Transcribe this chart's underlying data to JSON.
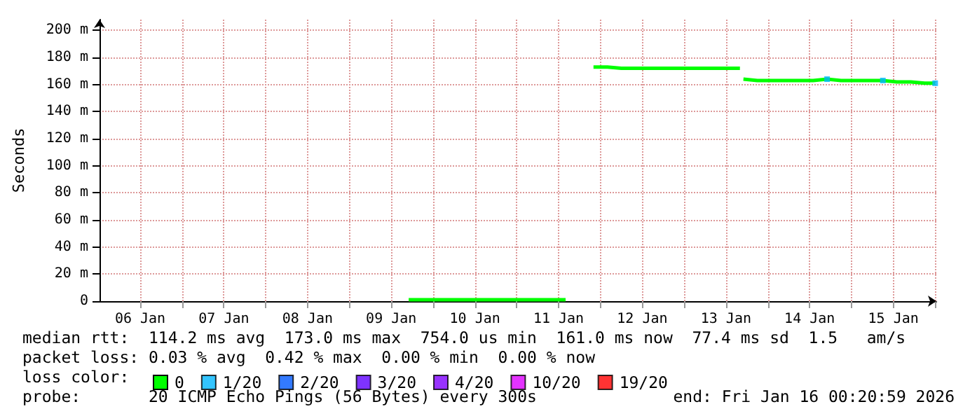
{
  "chart_data": {
    "type": "line",
    "ylabel": "Seconds",
    "x": [
      "2026-01-09T17:00",
      "2026-01-09T21:00",
      "2026-01-10T01:00",
      "2026-01-10T05:00",
      "2026-01-10T09:00",
      "2026-01-10T13:00",
      "2026-01-10T17:00",
      "2026-01-10T21:00",
      "2026-01-11T01:00",
      "2026-01-11T05:00",
      "2026-01-11T09:00",
      "2026-01-11T13:00",
      "2026-01-11T14:00",
      "2026-01-11T18:00",
      "2026-01-11T22:00",
      "2026-01-12T02:00",
      "2026-01-12T06:00",
      "2026-01-12T10:00",
      "2026-01-12T14:00",
      "2026-01-12T18:00",
      "2026-01-12T22:00",
      "2026-01-13T02:00",
      "2026-01-13T06:00",
      "2026-01-13T10:00",
      "2026-01-13T14:00",
      "2026-01-13T16:00",
      "2026-01-13T16:20",
      "2026-01-13T17:00",
      "2026-01-13T21:00",
      "2026-01-14T01:00",
      "2026-01-14T05:00",
      "2026-01-14T09:00",
      "2026-01-14T13:00",
      "2026-01-14T17:00",
      "2026-01-14T21:00",
      "2026-01-15T01:00",
      "2026-01-15T05:00",
      "2026-01-15T09:00",
      "2026-01-15T13:00",
      "2026-01-15T17:00",
      "2026-01-15T21:00",
      "2026-01-16T00:00"
    ],
    "series": [
      {
        "name": "0",
        "color": "#00ff00",
        "values": [
          1,
          1,
          1,
          1,
          1,
          1,
          1,
          1,
          1,
          1,
          1,
          1,
          1,
          null,
          173,
          173,
          172,
          172,
          172,
          172,
          172,
          172,
          172,
          172,
          172,
          172,
          null,
          164,
          163,
          163,
          163,
          163,
          163,
          164,
          163,
          163,
          163,
          163,
          162,
          162,
          161,
          161
        ]
      },
      {
        "name": "1/20",
        "type": "scatter",
        "marker": "square",
        "color": "#00b7ff",
        "values": [
          null,
          null,
          null,
          null,
          null,
          null,
          null,
          null,
          null,
          null,
          null,
          null,
          null,
          null,
          null,
          null,
          null,
          null,
          null,
          null,
          null,
          null,
          null,
          null,
          null,
          null,
          null,
          null,
          null,
          null,
          null,
          null,
          null,
          164,
          null,
          null,
          null,
          163,
          null,
          null,
          null,
          161
        ]
      },
      {
        "name": "2/20",
        "type": "scatter",
        "marker": "square",
        "color": "#0059ff",
        "values": [
          null,
          null,
          null,
          null,
          null,
          null,
          null,
          null,
          null,
          null,
          null,
          null,
          null,
          null,
          null,
          null,
          null,
          null,
          null,
          null,
          null,
          null,
          null,
          null,
          null,
          null,
          null,
          null,
          null,
          null,
          null,
          null,
          null,
          null,
          null,
          null,
          null,
          null,
          null,
          null,
          null,
          null
        ]
      },
      {
        "name": "3/20",
        "type": "scatter",
        "marker": "square",
        "color": "#5e00ff",
        "values": [
          null,
          null,
          null,
          null,
          null,
          null,
          null,
          null,
          null,
          null,
          null,
          null,
          null,
          null,
          null,
          null,
          null,
          null,
          null,
          null,
          null,
          null,
          null,
          null,
          null,
          null,
          null,
          null,
          null,
          null,
          null,
          null,
          null,
          null,
          null,
          null,
          null,
          null,
          null,
          null,
          null,
          null
        ]
      },
      {
        "name": "4/20",
        "type": "scatter",
        "marker": "square",
        "color": "#7e00ff",
        "values": [
          null,
          null,
          null,
          null,
          null,
          null,
          null,
          null,
          null,
          null,
          null,
          null,
          null,
          null,
          null,
          null,
          null,
          null,
          null,
          null,
          null,
          null,
          null,
          null,
          null,
          null,
          null,
          null,
          null,
          null,
          null,
          null,
          null,
          null,
          null,
          null,
          null,
          null,
          null,
          null,
          null,
          null
        ]
      },
      {
        "name": "10/20",
        "type": "scatter",
        "marker": "square",
        "color": "#dd00ff",
        "values": [
          null,
          null,
          null,
          null,
          null,
          null,
          null,
          null,
          null,
          null,
          null,
          null,
          null,
          null,
          null,
          null,
          null,
          null,
          null,
          null,
          null,
          null,
          null,
          null,
          null,
          null,
          null,
          null,
          null,
          null,
          null,
          null,
          null,
          null,
          null,
          null,
          null,
          null,
          null,
          null,
          null,
          null
        ]
      },
      {
        "name": "19/20",
        "type": "scatter",
        "marker": "square",
        "color": "#ff0000",
        "values": [
          null,
          null,
          null,
          null,
          null,
          null,
          null,
          null,
          null,
          null,
          null,
          null,
          null,
          null,
          null,
          null,
          null,
          null,
          null,
          null,
          null,
          null,
          null,
          null,
          null,
          null,
          null,
          null,
          null,
          null,
          null,
          null,
          null,
          null,
          null,
          null,
          null,
          null,
          null,
          null,
          null,
          null
        ]
      }
    ],
    "legend_title": "loss color:",
    "legend": "bottom",
    "grid": true,
    "xlim": [
      "2026-01-06T00:20",
      "2026-01-16T00:20"
    ],
    "xticks": [
      {
        "value": "2026-01-06T12:00",
        "label": "06 Jan"
      },
      {
        "value": "2026-01-07T00:00",
        "label": null
      },
      {
        "value": "2026-01-07T12:00",
        "label": "07 Jan"
      },
      {
        "value": "2026-01-08T00:00",
        "label": null
      },
      {
        "value": "2026-01-08T12:00",
        "label": "08 Jan"
      },
      {
        "value": "2026-01-09T00:00",
        "label": null
      },
      {
        "value": "2026-01-09T12:00",
        "label": "09 Jan"
      },
      {
        "value": "2026-01-10T00:00",
        "label": null
      },
      {
        "value": "2026-01-10T12:00",
        "label": "10 Jan"
      },
      {
        "value": "2026-01-11T00:00",
        "label": null
      },
      {
        "value": "2026-01-11T12:00",
        "label": "11 Jan"
      },
      {
        "value": "2026-01-12T00:00",
        "label": null
      },
      {
        "value": "2026-01-12T12:00",
        "label": "12 Jan"
      },
      {
        "value": "2026-01-13T00:00",
        "label": null
      },
      {
        "value": "2026-01-13T12:00",
        "label": "13 Jan"
      },
      {
        "value": "2026-01-14T00:00",
        "label": null
      },
      {
        "value": "2026-01-14T12:00",
        "label": "14 Jan"
      },
      {
        "value": "2026-01-15T00:00",
        "label": null
      },
      {
        "value": "2026-01-15T12:00",
        "label": "15 Jan"
      },
      {
        "value": "2026-01-16T00:00",
        "label": null
      }
    ],
    "ylim": [
      0,
      208
    ],
    "yticks": [
      0,
      {
        "value": 20,
        "label": "20 m"
      },
      {
        "value": 40,
        "label": "40 m"
      },
      {
        "value": 60,
        "label": "60 m"
      },
      {
        "value": 80,
        "label": "80 m"
      },
      {
        "value": 100,
        "label": "100 m"
      },
      {
        "value": 120,
        "label": "120 m"
      },
      {
        "value": 140,
        "label": "140 m"
      },
      {
        "value": 160,
        "label": "160 m"
      },
      {
        "value": 180,
        "label": "180 m"
      },
      {
        "value": 200,
        "label": "200 m"
      }
    ],
    "annotations": [
      "median rtt:  114.2 ms avg  173.0 ms max  754.0 us min  161.0 ms now  77.4 ms sd  1.5   am/s",
      "packet loss: 0.03 % avg  0.42 % max  0.00 % min  0.00 % now",
      "probe:       20 ICMP Echo Pings (56 Bytes) every 300s",
      "end: Fri Jan 16 00:20:59 2026"
    ]
  }
}
